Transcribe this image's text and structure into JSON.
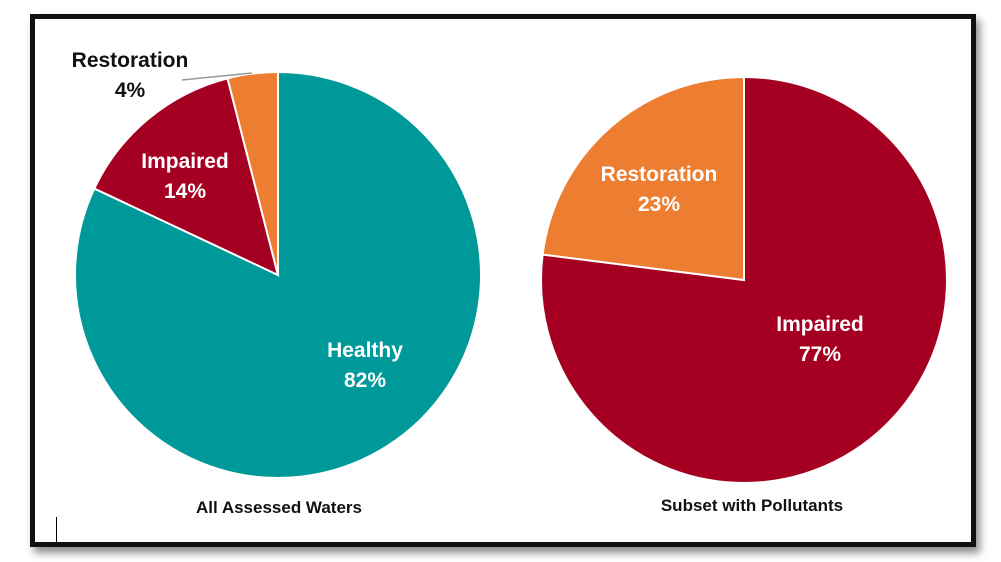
{
  "chart_data": [
    {
      "type": "pie",
      "title": "All Assessed Waters",
      "slices": [
        {
          "label": "Healthy",
          "value": 82,
          "value_label": "82%",
          "color": "#009999"
        },
        {
          "label": "Impaired",
          "value": 14,
          "value_label": "14%",
          "color": "#A50021"
        },
        {
          "label": "Restoration",
          "value": 4,
          "value_label": "4%",
          "color": "#ED7D31"
        }
      ]
    },
    {
      "type": "pie",
      "title": "Subset with Pollutants",
      "slices": [
        {
          "label": "Impaired",
          "value": 77,
          "value_label": "77%",
          "color": "#A50021"
        },
        {
          "label": "Restoration",
          "value": 23,
          "value_label": "23%",
          "color": "#ED7D31"
        }
      ]
    }
  ]
}
